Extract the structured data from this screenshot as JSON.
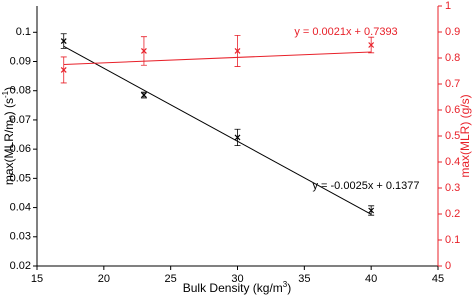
{
  "chart_data": {
    "type": "scatter",
    "x": [
      17,
      23,
      30,
      40
    ],
    "xlabel": [
      "Bulk Density (kg/m",
      "3",
      ")"
    ],
    "ylabel": [
      "max(MLR/m",
      "0",
      ") (s",
      "-1",
      ")"
    ],
    "y2label": "max(MLR) (g/s)",
    "xlim": [
      15,
      45
    ],
    "xticks": [
      15,
      20,
      25,
      30,
      35,
      40,
      45
    ],
    "ylim": [
      0.02,
      0.109
    ],
    "yticks": [
      0.02,
      0.03,
      0.04,
      0.05,
      0.06,
      0.07,
      0.08,
      0.09,
      0.1
    ],
    "y2lim": [
      0,
      1
    ],
    "y2ticks": [
      0,
      0.1,
      0.2,
      0.3,
      0.4,
      0.5,
      0.6,
      0.7,
      0.8,
      0.9,
      1
    ],
    "y2color": "#e8212a",
    "series": [
      {
        "color": "#000000",
        "axis": "y",
        "values": [
          0.097,
          0.0785,
          0.064,
          0.039
        ],
        "errors": [
          0.0025,
          0.001,
          0.0028,
          0.0016
        ],
        "trend_x": [
          17,
          40
        ],
        "trend_values": [
          0.0952,
          0.0377
        ],
        "equation": "y = -0.0025x + 0.1377"
      },
      {
        "color": "#e8212a",
        "axis": "y2",
        "values": [
          0.754,
          0.827,
          0.827,
          0.85
        ],
        "errors": [
          0.05,
          0.055,
          0.06,
          0.03
        ],
        "trend_x": [
          17,
          40
        ],
        "trend_values": [
          0.775,
          0.8233
        ],
        "equation": "y = 0.0021x + 0.7393"
      }
    ]
  }
}
